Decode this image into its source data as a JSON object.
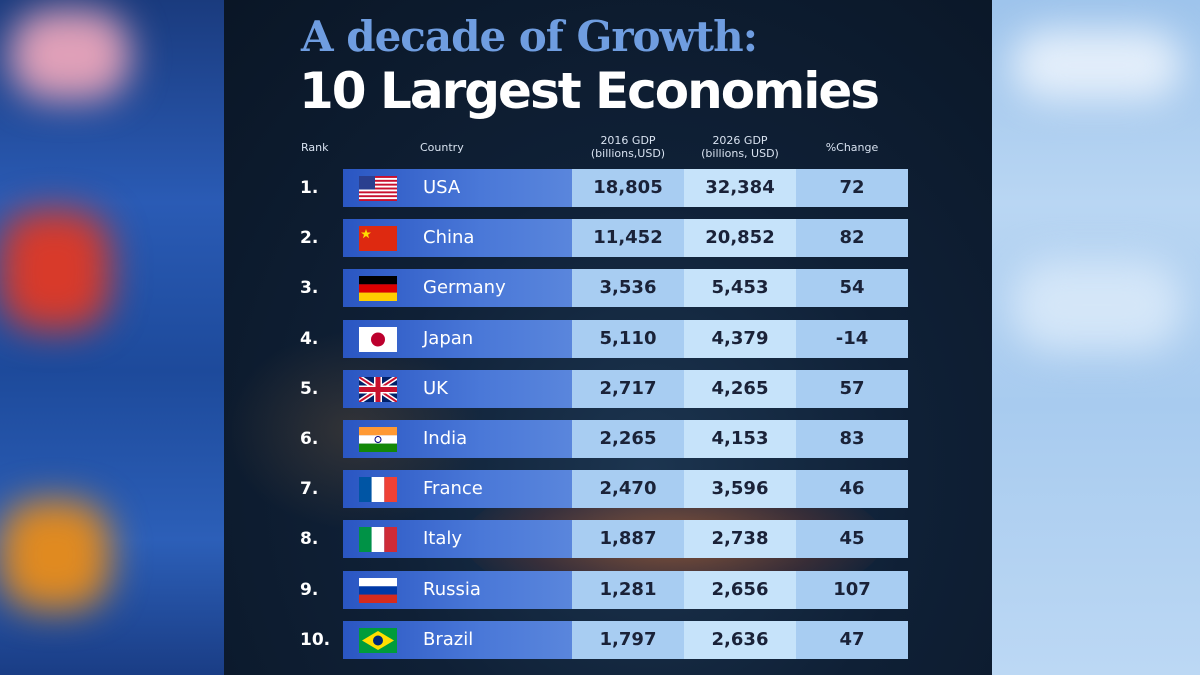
{
  "title_line1": "A decade of Growth:",
  "title_line2": "10 Largest Economies",
  "chart_data": {
    "type": "table",
    "columns": {
      "rank": "Rank",
      "country": "Country",
      "gdp2016_line1": "2016 GDP",
      "gdp2016_line2": "(billions,USD)",
      "gdp2026_line1": "2026 GDP",
      "gdp2026_line2": "(billions, USD)",
      "change": "%Change"
    },
    "rows": [
      {
        "rank": "1.",
        "country": "USA",
        "flag": "usa-flag",
        "gdp2016": "18,805",
        "gdp2026": "32,384",
        "change": "72"
      },
      {
        "rank": "2.",
        "country": "China",
        "flag": "china-flag",
        "gdp2016": "11,452",
        "gdp2026": "20,852",
        "change": "82"
      },
      {
        "rank": "3.",
        "country": "Germany",
        "flag": "germany-flag",
        "gdp2016": "3,536",
        "gdp2026": "5,453",
        "change": "54"
      },
      {
        "rank": "4.",
        "country": "Japan",
        "flag": "japan-flag",
        "gdp2016": "5,110",
        "gdp2026": "4,379",
        "change": "-14"
      },
      {
        "rank": "5.",
        "country": "UK",
        "flag": "uk-flag",
        "gdp2016": "2,717",
        "gdp2026": "4,265",
        "change": "57"
      },
      {
        "rank": "6.",
        "country": "India",
        "flag": "india-flag",
        "gdp2016": "2,265",
        "gdp2026": "4,153",
        "change": "83"
      },
      {
        "rank": "7.",
        "country": "France",
        "flag": "france-flag",
        "gdp2016": "2,470",
        "gdp2026": "3,596",
        "change": "46"
      },
      {
        "rank": "8.",
        "country": "Italy",
        "flag": "italy-flag",
        "gdp2016": "1,887",
        "gdp2026": "2,738",
        "change": "45"
      },
      {
        "rank": "9.",
        "country": "Russia",
        "flag": "russia-flag",
        "gdp2016": "1,281",
        "gdp2026": "2,656",
        "change": "107"
      },
      {
        "rank": "10.",
        "country": "Brazil",
        "flag": "brazil-flag",
        "gdp2016": "1,797",
        "gdp2026": "2,636",
        "change": "47"
      }
    ]
  },
  "colors": {
    "title_accent": "#6f9de0",
    "country_cell": "#3a67cf",
    "value_cell": "#a8cdf2",
    "value_cell_alt": "#c6e3fa"
  }
}
